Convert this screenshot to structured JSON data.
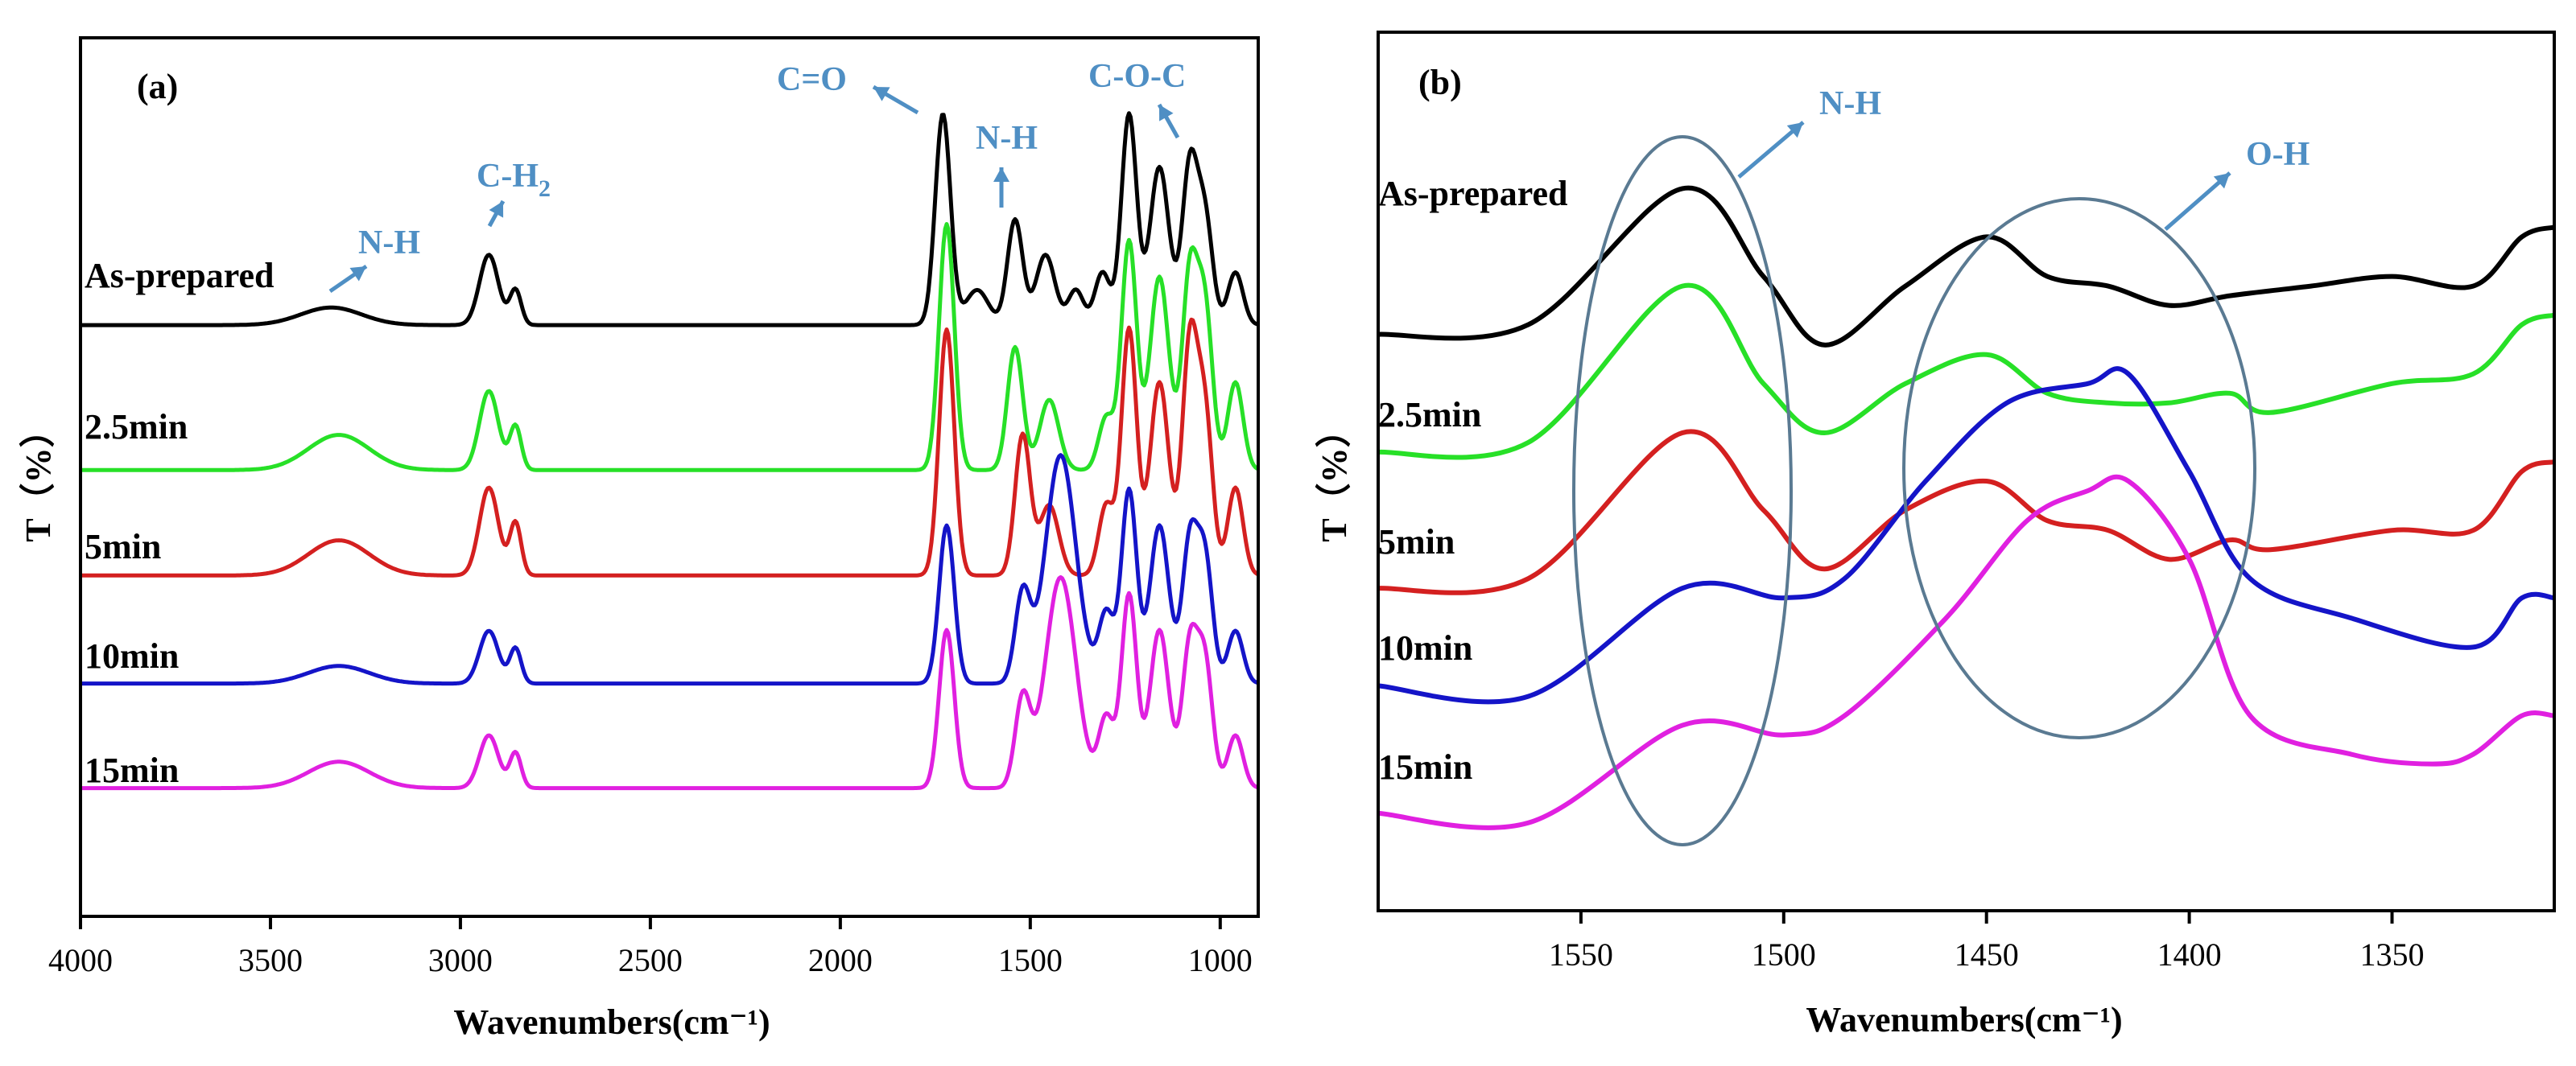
{
  "colors": {
    "As-prepared": "#000000",
    "2.5min": "#27e027",
    "5min": "#d42020",
    "10min": "#1414c8",
    "15min": "#e020e0",
    "annotation": "#4f8fc4",
    "ellipse": "#5a7a92"
  },
  "chart_data": [
    {
      "panel": "(a)",
      "type": "line",
      "xlabel": "Wavenumbers(cm⁻¹)",
      "ylabel": "T（%）",
      "xlim": [
        4000,
        900
      ],
      "ylim": [
        0,
        100
      ],
      "xticks": [
        4000,
        3500,
        3000,
        2500,
        2000,
        1500,
        1000
      ],
      "yticks_visible": false,
      "series_labels": [
        "As-prepared",
        "2.5min",
        "5min",
        "10min",
        "15min"
      ],
      "series": [
        {
          "name": "As-prepared",
          "offset": 67.3,
          "peaks": [
            [
              3340,
              2.0,
              80
            ],
            [
              2925,
              8.0,
              25
            ],
            [
              2855,
              4.0,
              15
            ],
            [
              1730,
              24.0,
              20
            ],
            [
              1640,
              4.0,
              30
            ],
            [
              1540,
              12.0,
              20
            ],
            [
              1460,
              8.0,
              25
            ],
            [
              1380,
              4.0,
              20
            ],
            [
              1310,
              6.0,
              20
            ],
            [
              1240,
              24.0,
              20
            ],
            [
              1160,
              18.0,
              25
            ],
            [
              1080,
              18.0,
              20
            ],
            [
              1040,
              12.0,
              20
            ],
            [
              960,
              6.0,
              20
            ]
          ]
        },
        {
          "name": "2.5min",
          "offset": 50.8,
          "peaks": [
            [
              3320,
              4.0,
              80
            ],
            [
              2925,
              9.0,
              25
            ],
            [
              2855,
              5.0,
              15
            ],
            [
              1720,
              28.0,
              20
            ],
            [
              1540,
              14.0,
              20
            ],
            [
              1450,
              8.0,
              25
            ],
            [
              1300,
              6.0,
              20
            ],
            [
              1240,
              26.0,
              20
            ],
            [
              1160,
              22.0,
              25
            ],
            [
              1080,
              22.0,
              20
            ],
            [
              1040,
              18.0,
              20
            ],
            [
              960,
              10.0,
              20
            ]
          ]
        },
        {
          "name": "5min",
          "offset": 38.8,
          "peaks": [
            [
              3320,
              4.0,
              80
            ],
            [
              2925,
              10.0,
              25
            ],
            [
              2855,
              6.0,
              15
            ],
            [
              1720,
              28.0,
              20
            ],
            [
              1520,
              16.0,
              20
            ],
            [
              1450,
              8.0,
              25
            ],
            [
              1300,
              8.0,
              20
            ],
            [
              1240,
              28.0,
              20
            ],
            [
              1160,
              22.0,
              25
            ],
            [
              1080,
              26.0,
              20
            ],
            [
              1040,
              18.0,
              20
            ],
            [
              960,
              10.0,
              20
            ]
          ]
        },
        {
          "name": "10min",
          "offset": 26.5,
          "peaks": [
            [
              3320,
              2.0,
              80
            ],
            [
              2925,
              6.0,
              25
            ],
            [
              2855,
              4.0,
              15
            ],
            [
              1720,
              18.0,
              20
            ],
            [
              1520,
              10.0,
              20
            ],
            [
              1420,
              26.0,
              40
            ],
            [
              1300,
              8.0,
              20
            ],
            [
              1240,
              22.0,
              20
            ],
            [
              1160,
              18.0,
              25
            ],
            [
              1080,
              16.0,
              20
            ],
            [
              1040,
              14.0,
              20
            ],
            [
              960,
              6.0,
              20
            ]
          ]
        },
        {
          "name": "15min",
          "offset": 14.6,
          "peaks": [
            [
              3320,
              3.0,
              80
            ],
            [
              2925,
              6.0,
              25
            ],
            [
              2855,
              4.0,
              15
            ],
            [
              1720,
              18.0,
              20
            ],
            [
              1520,
              10.0,
              20
            ],
            [
              1420,
              24.0,
              40
            ],
            [
              1300,
              8.0,
              20
            ],
            [
              1240,
              22.0,
              20
            ],
            [
              1160,
              18.0,
              25
            ],
            [
              1080,
              16.0,
              20
            ],
            [
              1040,
              14.0,
              20
            ],
            [
              960,
              6.0,
              20
            ]
          ]
        }
      ],
      "annotations": [
        {
          "text": "N-H",
          "x": 3340
        },
        {
          "text": "C-H",
          "sub": "2",
          "x": 2925
        },
        {
          "text": "C=O",
          "x": 1730
        },
        {
          "text": "N-H",
          "x": 1540
        },
        {
          "text": "C-O-C",
          "x": 1160
        }
      ]
    },
    {
      "panel": "(b)",
      "type": "line",
      "xlabel": "Wavenumbers(cm⁻¹)",
      "ylabel": "T（%）",
      "xlim": [
        1600,
        1310
      ],
      "ylim": [
        0,
        100
      ],
      "xticks": [
        1550,
        1500,
        1450,
        1400,
        1350
      ],
      "yticks_visible": false,
      "series_labels": [
        "As-prepared",
        "2.5min",
        "5min",
        "10min",
        "15min"
      ],
      "series": [
        {
          "name": "As-prepared",
          "points": [
            [
              1600,
              65.6
            ],
            [
              1563,
              66.7
            ],
            [
              1525,
              82.2
            ],
            [
              1505,
              72.2
            ],
            [
              1490,
              64.4
            ],
            [
              1470,
              71.1
            ],
            [
              1450,
              76.7
            ],
            [
              1435,
              72.2
            ],
            [
              1420,
              71.1
            ],
            [
              1405,
              68.9
            ],
            [
              1390,
              70.0
            ],
            [
              1370,
              71.1
            ],
            [
              1350,
              72.2
            ],
            [
              1330,
              71.1
            ],
            [
              1318,
              76.7
            ],
            [
              1310,
              77.8
            ]
          ]
        },
        {
          "name": "2.5min",
          "points": [
            [
              1600,
              52.2
            ],
            [
              1563,
              53.3
            ],
            [
              1525,
              71.1
            ],
            [
              1505,
              60.0
            ],
            [
              1490,
              54.4
            ],
            [
              1470,
              60.0
            ],
            [
              1450,
              63.3
            ],
            [
              1435,
              58.9
            ],
            [
              1420,
              57.8
            ],
            [
              1405,
              57.8
            ],
            [
              1390,
              58.9
            ],
            [
              1380,
              56.7
            ],
            [
              1350,
              60.0
            ],
            [
              1330,
              61.1
            ],
            [
              1318,
              66.7
            ],
            [
              1310,
              67.8
            ]
          ]
        },
        {
          "name": "5min",
          "points": [
            [
              1600,
              36.7
            ],
            [
              1563,
              37.8
            ],
            [
              1525,
              54.4
            ],
            [
              1505,
              45.6
            ],
            [
              1490,
              38.9
            ],
            [
              1470,
              45.6
            ],
            [
              1450,
              48.9
            ],
            [
              1435,
              44.4
            ],
            [
              1420,
              43.3
            ],
            [
              1405,
              40.0
            ],
            [
              1390,
              42.2
            ],
            [
              1380,
              41.1
            ],
            [
              1350,
              43.3
            ],
            [
              1330,
              43.3
            ],
            [
              1318,
              50.0
            ],
            [
              1310,
              51.1
            ]
          ]
        },
        {
          "name": "10min",
          "points": [
            [
              1600,
              25.6
            ],
            [
              1563,
              24.4
            ],
            [
              1525,
              36.7
            ],
            [
              1500,
              35.6
            ],
            [
              1485,
              37.8
            ],
            [
              1465,
              48.9
            ],
            [
              1445,
              57.8
            ],
            [
              1425,
              60.0
            ],
            [
              1415,
              61.1
            ],
            [
              1400,
              50.0
            ],
            [
              1385,
              37.8
            ],
            [
              1360,
              33.3
            ],
            [
              1330,
              30.0
            ],
            [
              1318,
              35.6
            ],
            [
              1310,
              35.6
            ]
          ]
        },
        {
          "name": "15min",
          "points": [
            [
              1600,
              11.1
            ],
            [
              1563,
              10.0
            ],
            [
              1525,
              21.1
            ],
            [
              1500,
              20.0
            ],
            [
              1485,
              22.2
            ],
            [
              1460,
              33.3
            ],
            [
              1440,
              44.4
            ],
            [
              1425,
              47.8
            ],
            [
              1415,
              48.9
            ],
            [
              1400,
              40.0
            ],
            [
              1385,
              22.2
            ],
            [
              1360,
              17.8
            ],
            [
              1340,
              16.7
            ],
            [
              1330,
              17.8
            ],
            [
              1318,
              22.2
            ],
            [
              1310,
              22.2
            ]
          ]
        }
      ],
      "annotations": [
        {
          "text": "N-H",
          "x": 1524
        },
        {
          "text": "O-H",
          "x": 1428
        }
      ]
    }
  ]
}
